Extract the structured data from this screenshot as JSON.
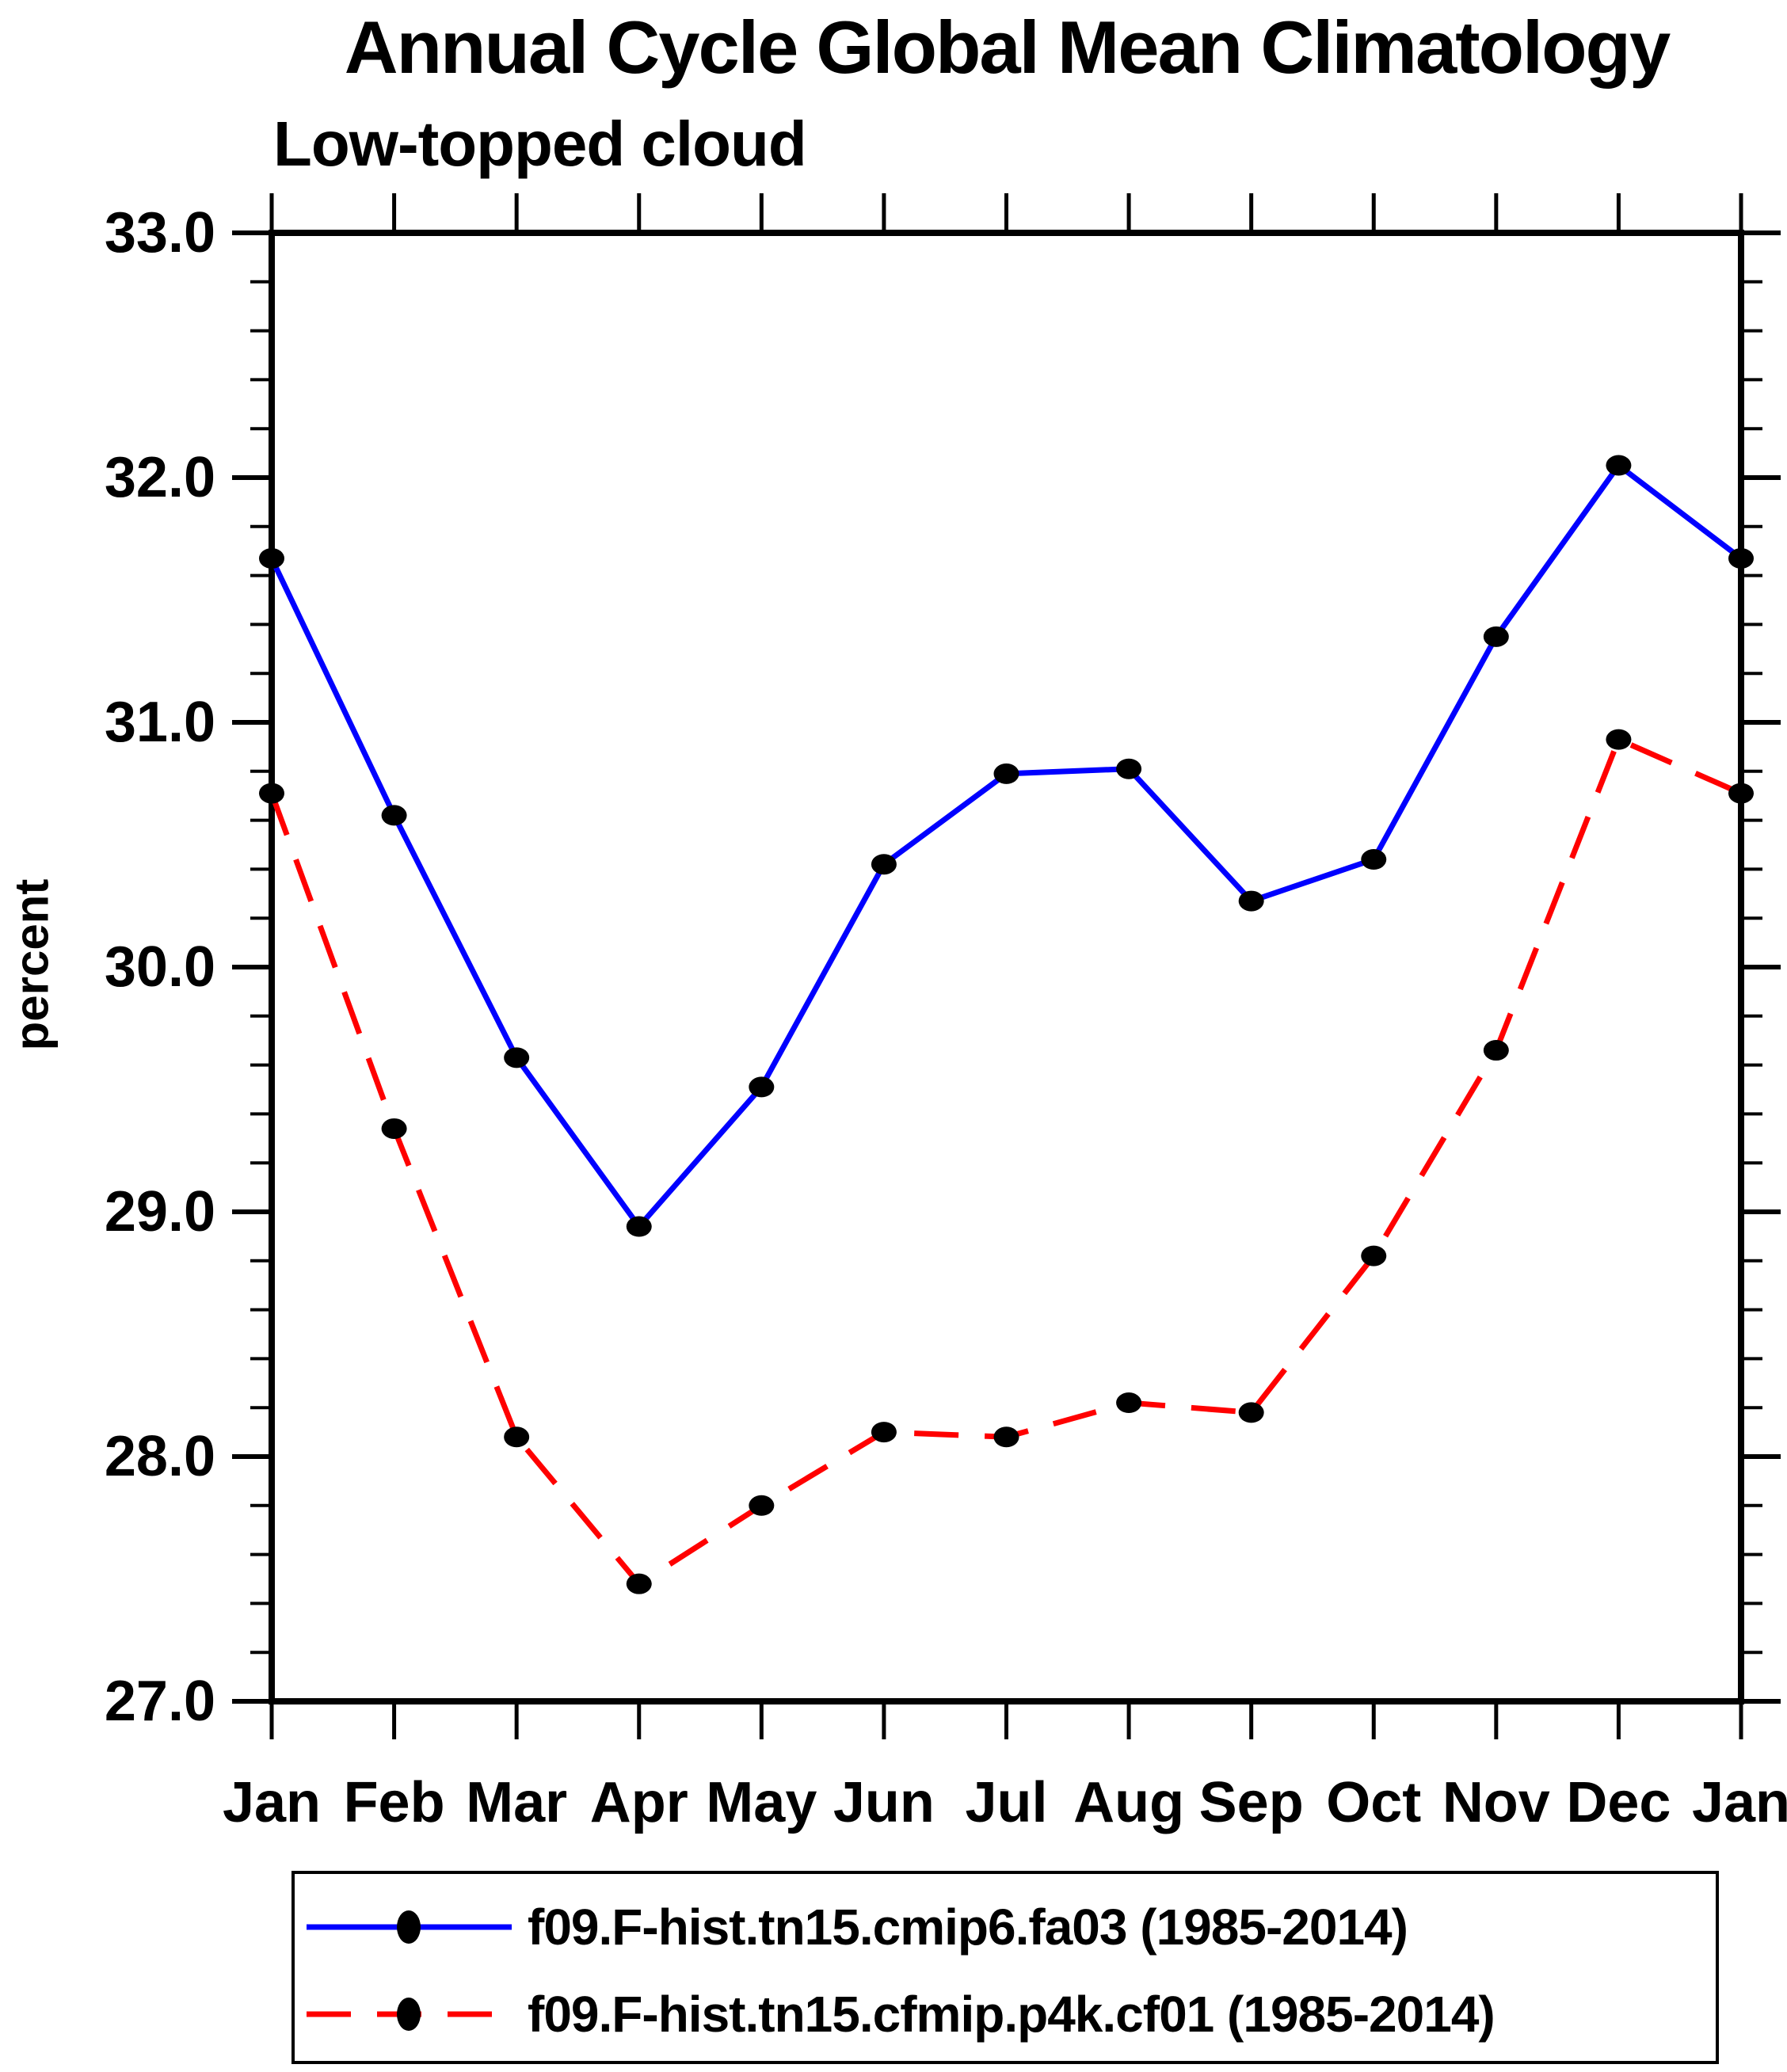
{
  "chart_data": {
    "type": "line",
    "title": "Annual Cycle Global Mean Climatology",
    "subtitle": "Low-topped cloud",
    "ylabel": "percent",
    "ylim": [
      27.0,
      33.0
    ],
    "y_major_step": 1.0,
    "y_minor_step": 0.2,
    "y_tick_labels": [
      "33.0",
      "32.0",
      "31.0",
      "30.0",
      "29.0",
      "28.0",
      "27.0"
    ],
    "categories": [
      "Jan",
      "Feb",
      "Mar",
      "Apr",
      "May",
      "Jun",
      "Jul",
      "Aug",
      "Sep",
      "Oct",
      "Nov",
      "Dec",
      "Jan"
    ],
    "grid": false,
    "legend_position": "bottom",
    "series": [
      {
        "name": "f09.F-hist.tn15.cmip6.fa03 (1985-2014)",
        "color": "#0000ff",
        "line_style": "solid",
        "marker": "filled-circle",
        "marker_color": "#000000",
        "values": [
          31.67,
          30.62,
          29.63,
          28.94,
          29.51,
          30.42,
          30.79,
          30.81,
          30.27,
          30.44,
          31.35,
          32.05,
          31.67
        ]
      },
      {
        "name": "f09.F-hist.tn15.cfmip.p4k.cf01 (1985-2014)",
        "color": "#ff0000",
        "line_style": "dashed",
        "marker": "filled-circle",
        "marker_color": "#000000",
        "values": [
          30.71,
          29.34,
          28.08,
          27.48,
          27.8,
          28.1,
          28.08,
          28.22,
          28.18,
          28.82,
          29.66,
          30.93,
          30.71
        ]
      }
    ]
  }
}
